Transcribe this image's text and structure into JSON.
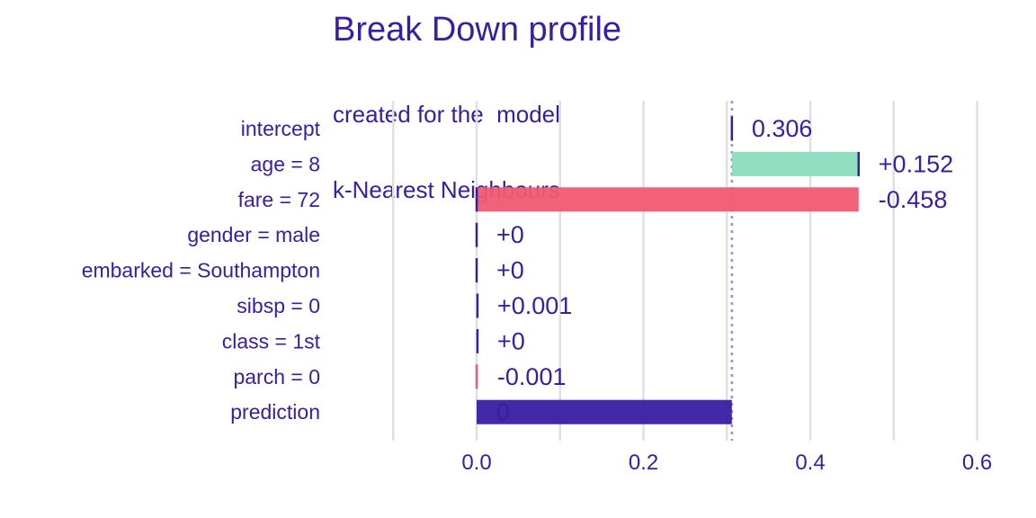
{
  "chart_data": {
    "type": "bar",
    "subtype": "waterfall",
    "title": "Break Down profile",
    "subtitle": [
      "created for the  model",
      "k-Nearest Neighbours"
    ],
    "baseline_label": "0.306",
    "xlim": [
      -0.1,
      0.62
    ],
    "xticks": [
      0.0,
      0.2,
      0.4,
      0.6
    ],
    "xtick_labels": [
      "0.0",
      "0.2",
      "0.4",
      "0.6"
    ],
    "vline": 0.306,
    "grid": "vertical",
    "colors": {
      "text": "#371ea3",
      "positive": "#8bdcbe",
      "negative": "#f05a71",
      "prediction": "#371ea3",
      "grid": "#e0e0e0",
      "vline": "#9b8fd6"
    },
    "rows": [
      {
        "label": "intercept",
        "start": 0.306,
        "end": 0.306,
        "value_label": "0.306",
        "kind": "intercept"
      },
      {
        "label": "age = 8",
        "start": 0.306,
        "end": 0.458,
        "value_label": "+0.152",
        "kind": "positive"
      },
      {
        "label": "fare = 72",
        "start": 0.458,
        "end": 0.0,
        "value_label": "-0.458",
        "kind": "negative"
      },
      {
        "label": "gender = male",
        "start": 0.0,
        "end": 0.0,
        "value_label": "+0",
        "kind": "positive"
      },
      {
        "label": "embarked = Southampton",
        "start": 0.0,
        "end": 0.0,
        "value_label": "+0",
        "kind": "positive"
      },
      {
        "label": "sibsp = 0",
        "start": 0.0,
        "end": 0.001,
        "value_label": "+0.001",
        "kind": "positive"
      },
      {
        "label": "class = 1st",
        "start": 0.001,
        "end": 0.001,
        "value_label": "+0",
        "kind": "positive"
      },
      {
        "label": "parch = 0",
        "start": 0.001,
        "end": 0.0,
        "value_label": "-0.001",
        "kind": "negative"
      },
      {
        "label": "prediction",
        "start": 0.0,
        "end": 0.306,
        "value_label": "0",
        "kind": "prediction"
      }
    ]
  }
}
